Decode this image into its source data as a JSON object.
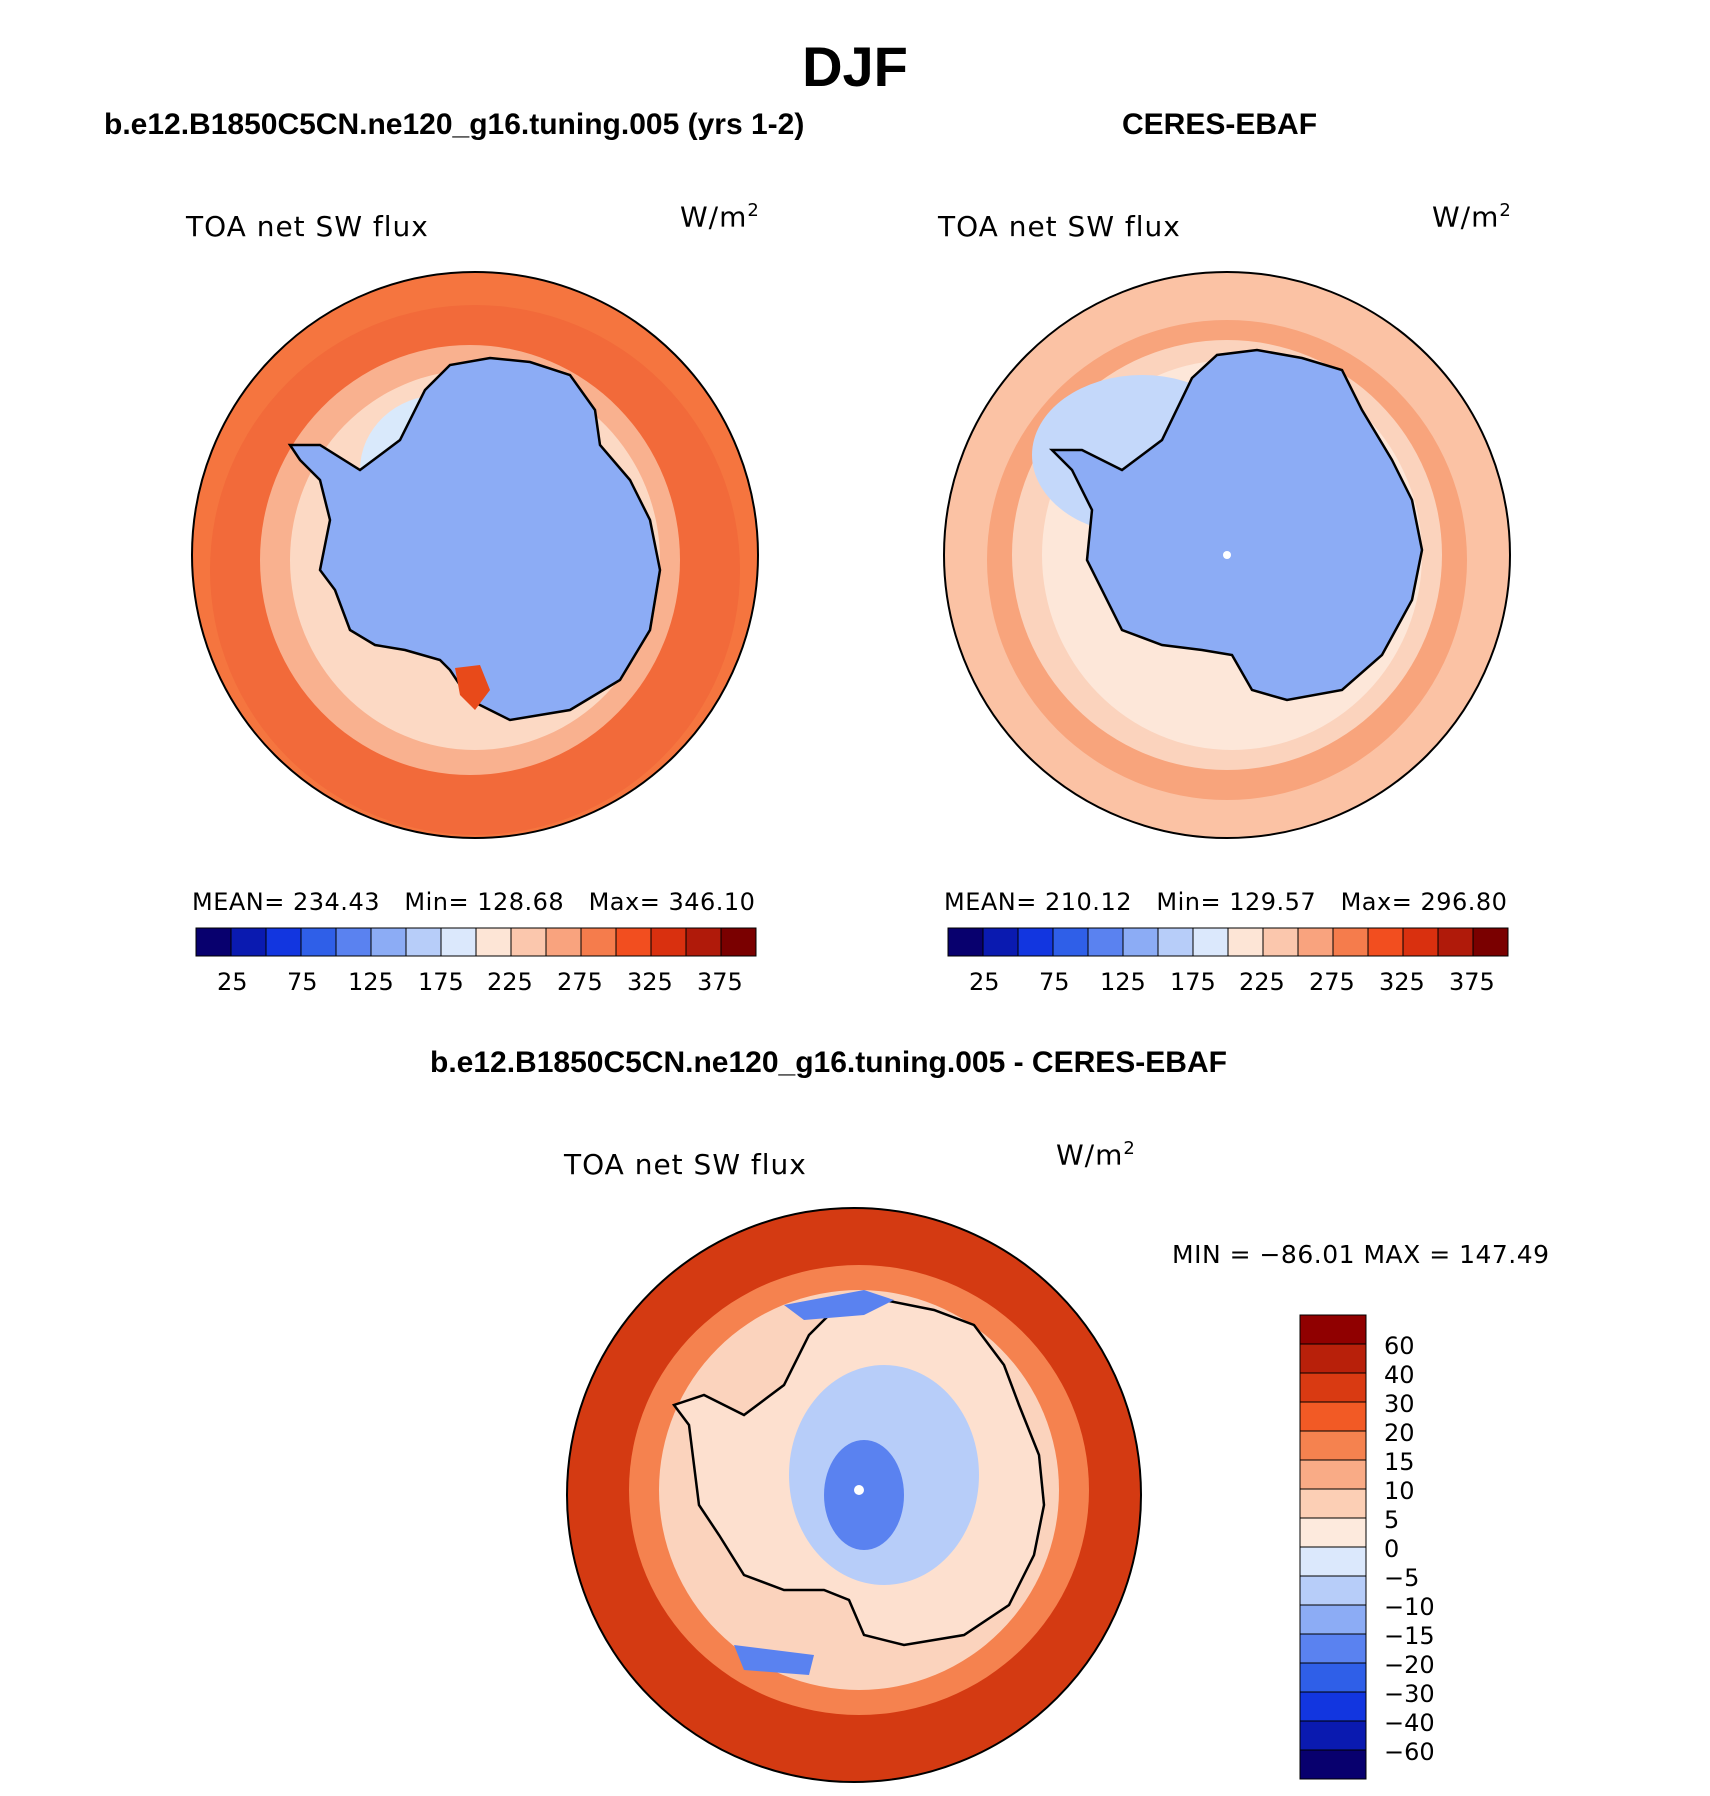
{
  "title": "DJF",
  "panels": [
    {
      "case_title": "b.e12.B1850C5CN.ne120_g16.tuning.005 (yrs 1-2)",
      "variable": "TOA net SW flux",
      "units": "W/m",
      "units_exp": "2",
      "stats": {
        "mean_label": "MEAN=",
        "mean": "234.43",
        "min_label": "Min=",
        "min": "128.68",
        "max_label": "Max=",
        "max": "346.10"
      },
      "colorbar_ticks": [
        "25",
        "75",
        "125",
        "175",
        "225",
        "275",
        "325",
        "375"
      ],
      "field": {
        "ocean": "#f5753f",
        "outer_ring": "#f26a3a",
        "mid_ring": "#f9b18f",
        "inner_ring": "#fcd9c4",
        "ice": "#d9e9fb",
        "land": "#8cacf5"
      }
    },
    {
      "case_title": "CERES-EBAF",
      "variable": "TOA net SW flux",
      "units": "W/m",
      "units_exp": "2",
      "stats": {
        "mean_label": "MEAN=",
        "mean": "210.12",
        "min_label": "Min=",
        "min": "129.57",
        "max_label": "Max=",
        "max": "296.80"
      },
      "colorbar_ticks": [
        "25",
        "75",
        "125",
        "175",
        "225",
        "275",
        "325",
        "375"
      ],
      "field": {
        "ocean": "#fbc2a4",
        "outer_ring": "#f8a47c",
        "mid_ring": "#fbd3bd",
        "inner_ring": "#fde7d9",
        "ice": "#c4d8fa",
        "land": "#8cacf5"
      }
    }
  ],
  "colorbar_colors": [
    "#08006e",
    "#0a1ab0",
    "#1236e0",
    "#2f5fe8",
    "#5a82f0",
    "#8cacf5",
    "#b7cdf9",
    "#dbe8fc",
    "#fde5d6",
    "#fbc7ad",
    "#f9a37e",
    "#f57c4c",
    "#f24e1f",
    "#d9300f",
    "#b01a0a",
    "#7a0000"
  ],
  "diff_panel": {
    "title": "b.e12.B1850C5CN.ne120_g16.tuning.005 - CERES-EBAF",
    "variable": "TOA net SW flux",
    "units": "W/m",
    "units_exp": "2",
    "min_max_text": "MIN = −86.01 MAX = 147.49",
    "legend_labels": [
      "60",
      "40",
      "30",
      "20",
      "15",
      "10",
      "5",
      "0",
      "−5",
      "−10",
      "−15",
      "−20",
      "−30",
      "−40",
      "−60"
    ],
    "legend_colors": [
      "#900000",
      "#b8200a",
      "#d93a12",
      "#f25a25",
      "#f5824f",
      "#f9ab86",
      "#fccfb5",
      "#fdeadd",
      "#dbe8fc",
      "#b7cdf9",
      "#8cacf5",
      "#5a82f0",
      "#2f5fe8",
      "#1236e0",
      "#0a1ab0",
      "#08006e"
    ],
    "field": {
      "ocean": "#d43a12",
      "outer_ring": "#c52a0c",
      "mid_ring": "#f5824f",
      "coast": "#fbd3bd",
      "land": "#fde0cf",
      "land_blue": "#b7cdf9",
      "land_deep_blue": "#5a82f0"
    }
  }
}
